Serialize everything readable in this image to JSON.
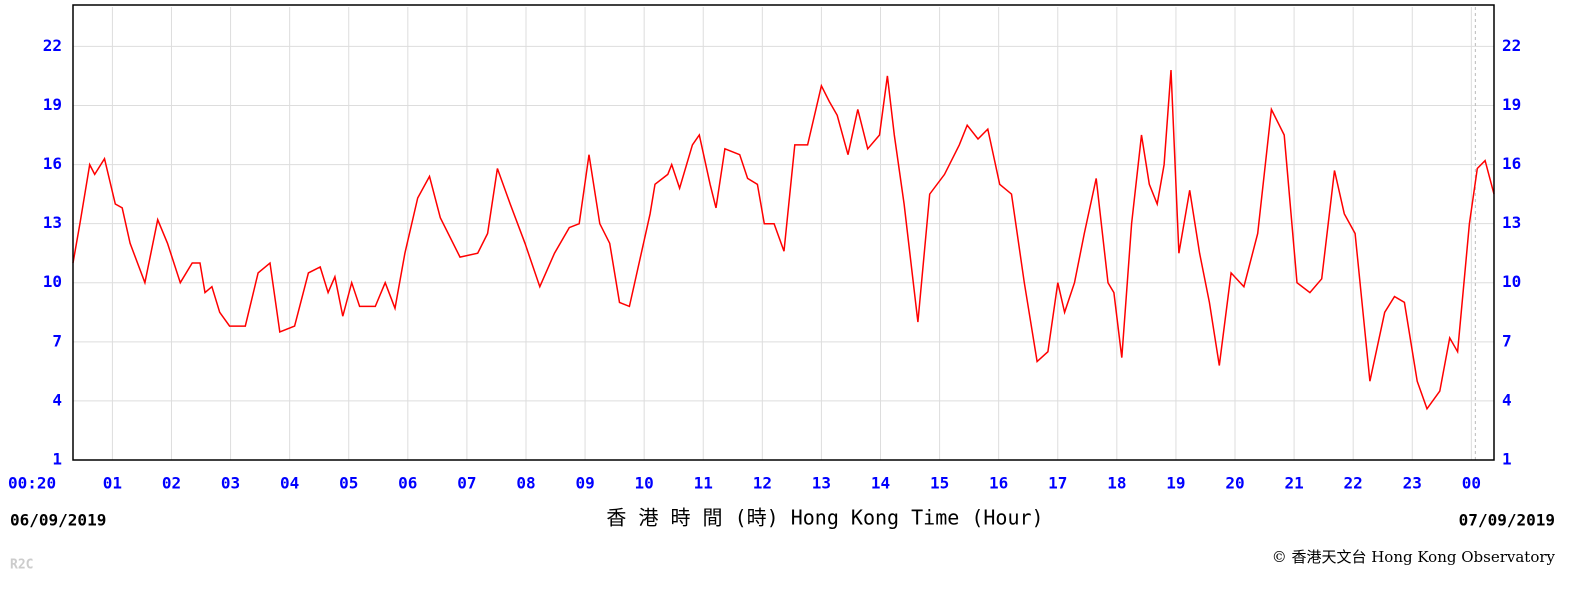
{
  "chart_data": {
    "type": "line",
    "x_label": "香 港 時 間 (時) Hong Kong Time (Hour)",
    "start_date": "06/09/2019",
    "end_date": "07/09/2019",
    "credit": "© 香港天文台 Hong Kong Observatory",
    "code": "R2C",
    "color": "#ff0000",
    "grid": true,
    "xlim": [
      20,
      1463
    ],
    "ylim": [
      1,
      24
    ],
    "yticks": [
      1,
      4,
      7,
      10,
      13,
      16,
      19,
      22
    ],
    "xticks": [
      {
        "value": 20,
        "label": "00:20"
      },
      {
        "value": 60,
        "label": "01"
      },
      {
        "value": 120,
        "label": "02"
      },
      {
        "value": 180,
        "label": "03"
      },
      {
        "value": 240,
        "label": "04"
      },
      {
        "value": 300,
        "label": "05"
      },
      {
        "value": 360,
        "label": "06"
      },
      {
        "value": 420,
        "label": "07"
      },
      {
        "value": 480,
        "label": "08"
      },
      {
        "value": 540,
        "label": "09"
      },
      {
        "value": 600,
        "label": "10"
      },
      {
        "value": 660,
        "label": "11"
      },
      {
        "value": 720,
        "label": "12"
      },
      {
        "value": 780,
        "label": "13"
      },
      {
        "value": 840,
        "label": "14"
      },
      {
        "value": 900,
        "label": "15"
      },
      {
        "value": 960,
        "label": "16"
      },
      {
        "value": 1020,
        "label": "17"
      },
      {
        "value": 1080,
        "label": "18"
      },
      {
        "value": 1140,
        "label": "19"
      },
      {
        "value": 1200,
        "label": "20"
      },
      {
        "value": 1260,
        "label": "21"
      },
      {
        "value": 1320,
        "label": "22"
      },
      {
        "value": 1380,
        "label": "23"
      },
      {
        "value": 1440,
        "label": "00"
      }
    ],
    "x": [
      20,
      27,
      37,
      42,
      52,
      63,
      70,
      78,
      93,
      106,
      116,
      129,
      141,
      149,
      154,
      161,
      169,
      179,
      195,
      208,
      220,
      230,
      245,
      259,
      271,
      279,
      286,
      294,
      303,
      311,
      327,
      337,
      347,
      357,
      370,
      382,
      393,
      413,
      431,
      441,
      451,
      464,
      479,
      494,
      509,
      524,
      534,
      544,
      555,
      565,
      575,
      585,
      606,
      611,
      624,
      628,
      636,
      649,
      656,
      667,
      673,
      682,
      697,
      705,
      715,
      722,
      732,
      742,
      753,
      766,
      780,
      788,
      796,
      807,
      817,
      827,
      839,
      847,
      854,
      864,
      878,
      890,
      905,
      920,
      928,
      939,
      949,
      961,
      973,
      986,
      999,
      1010,
      1020,
      1027,
      1037,
      1047,
      1059,
      1071,
      1077,
      1085,
      1095,
      1105,
      1113,
      1121,
      1128,
      1135,
      1143,
      1154,
      1164,
      1174,
      1184,
      1196,
      1209,
      1223,
      1237,
      1250,
      1263,
      1276,
      1288,
      1301,
      1311,
      1322,
      1337,
      1352,
      1362,
      1372,
      1385,
      1395,
      1408,
      1418,
      1426,
      1438,
      1446,
      1454,
      1463
    ],
    "values": [
      11,
      13,
      16,
      15.5,
      16.3,
      14,
      13.8,
      12,
      10,
      13.2,
      12,
      10,
      11,
      11,
      9.5,
      9.8,
      8.5,
      7.8,
      7.8,
      10.5,
      11,
      7.5,
      7.8,
      10.5,
      10.8,
      9.5,
      10.3,
      8.3,
      10,
      8.8,
      8.8,
      10,
      8.7,
      11.5,
      14.3,
      15.4,
      13.3,
      11.3,
      11.5,
      12.5,
      15.8,
      14,
      12,
      9.8,
      11.5,
      12.8,
      13,
      16.5,
      13,
      12,
      9,
      8.8,
      13.5,
      15,
      15.5,
      16,
      14.8,
      17,
      17.5,
      15,
      13.8,
      16.8,
      16.5,
      15.3,
      15,
      13,
      13,
      11.6,
      17,
      17,
      20,
      19.2,
      18.5,
      16.5,
      18.8,
      16.8,
      17.5,
      20.5,
      17.5,
      14,
      8,
      14.5,
      15.5,
      17,
      18,
      17.3,
      17.8,
      15,
      14.5,
      10,
      6,
      6.5,
      10,
      8.5,
      10,
      12.5,
      15.3,
      10,
      9.5,
      6.2,
      13,
      17.5,
      15,
      14,
      16,
      20.8,
      11.5,
      14.7,
      11.5,
      9,
      5.8,
      10.5,
      9.8,
      12.5,
      18.8,
      17.5,
      10,
      9.5,
      10.2,
      15.7,
      13.5,
      12.5,
      5,
      8.5,
      9.3,
      9,
      5,
      3.6,
      4.5,
      7.2,
      6.5,
      13,
      15.8,
      16.2,
      14.5
    ]
  }
}
